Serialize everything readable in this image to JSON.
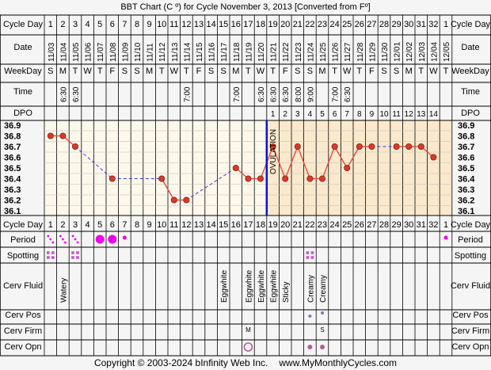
{
  "title": "BBT Chart (C º) for Cycle November 3, 2013  [Converted from Fº]",
  "footer": {
    "copyright": "Copyright © 2003-2024 bInfinity Web Inc.",
    "site": "www.MyMonthlyCycles.com"
  },
  "row_labels": {
    "cycle_day": "Cycle Day",
    "date": "Date",
    "weekday": "WeekDay",
    "time": "Time",
    "dpo": "DPO",
    "period": "Period",
    "spotting": "Spotting",
    "cerv_fluid": "Cerv Fluid",
    "cerv_pos": "Cerv Pos",
    "cerv_firm": "Cerv Firm",
    "cerv_opn": "Cerv Opn"
  },
  "ovulation_label": "OVULATION",
  "colors": {
    "background": "#f5f5f5",
    "pre_ovulation": "#fdf8ea",
    "post_ovulation": "#fbe9cd",
    "line": "#e74c3c",
    "dashed_line": "#3a3ae0",
    "point": "#d93a2b",
    "ovulation_line": "#1010d0",
    "period": "#ee00ee",
    "spotting": "#cc55cc",
    "cerv_dot": "#b06090"
  },
  "chart_data": {
    "type": "line",
    "title": "BBT Chart (C º) for Cycle November 3, 2013  [Converted from Fº]",
    "cycle_days": [
      "1",
      "2",
      "3",
      "4",
      "5",
      "6",
      "7",
      "8",
      "9",
      "10",
      "11",
      "12",
      "13",
      "14",
      "15",
      "16",
      "17",
      "18",
      "19",
      "20",
      "21",
      "22",
      "23",
      "24",
      "25",
      "26",
      "27",
      "28",
      "29",
      "30",
      "31",
      "32",
      "1"
    ],
    "dates": [
      "11/03",
      "11/04",
      "11/05",
      "11/06",
      "11/07",
      "11/08",
      "11/09",
      "11/10",
      "11/11",
      "11/12",
      "11/13",
      "11/14",
      "11/15",
      "11/16",
      "11/17",
      "11/18",
      "11/19",
      "11/20",
      "11/21",
      "11/22",
      "11/23",
      "11/24",
      "11/25",
      "11/26",
      "11/27",
      "11/28",
      "11/29",
      "11/30",
      "12/01",
      "12/02",
      "12/03",
      "12/04",
      "12/05"
    ],
    "weekdays": [
      "S",
      "M",
      "T",
      "W",
      "T",
      "F",
      "S",
      "S",
      "M",
      "T",
      "W",
      "T",
      "F",
      "S",
      "S",
      "M",
      "T",
      "W",
      "T",
      "F",
      "S",
      "S",
      "M",
      "T",
      "W",
      "T",
      "F",
      "S",
      "S",
      "M",
      "T",
      "W",
      "T"
    ],
    "times": [
      "",
      "6:30",
      "6:30",
      "",
      "",
      "",
      "",
      "",
      "",
      "",
      "",
      "7:00",
      "",
      "",
      "",
      "7:00",
      "",
      "6:30",
      "6:30",
      "6:30",
      "8:00",
      "9:00",
      "",
      "7:00",
      "6:30",
      "",
      "",
      "",
      "",
      "",
      "",
      "",
      ""
    ],
    "dpo": [
      "",
      "",
      "",
      "",
      "",
      "",
      "",
      "",
      "",
      "",
      "",
      "",
      "",
      "",
      "",
      "",
      "",
      "",
      "1",
      "2",
      "3",
      "4",
      "5",
      "6",
      "7",
      "8",
      "9",
      "10",
      "11",
      "12",
      "13",
      "14",
      ""
    ],
    "y_ticks": [
      "36.9",
      "36.8",
      "36.7",
      "36.6",
      "36.5",
      "36.4",
      "36.3",
      "36.2",
      "36.1"
    ],
    "ylim": [
      36.05,
      36.95
    ],
    "temps": [
      36.8,
      36.8,
      36.7,
      null,
      null,
      36.4,
      null,
      null,
      null,
      36.4,
      36.2,
      36.2,
      null,
      null,
      null,
      36.5,
      36.4,
      36.4,
      36.7,
      36.4,
      36.7,
      36.4,
      36.4,
      36.7,
      36.5,
      36.7,
      36.7,
      null,
      36.7,
      36.7,
      36.7,
      36.6,
      null
    ],
    "ovulation_day": 18,
    "coverline": null
  },
  "period": [
    2,
    2,
    2,
    0,
    3,
    3,
    1,
    0,
    0,
    0,
    0,
    0,
    0,
    0,
    0,
    0,
    0,
    0,
    0,
    0,
    0,
    0,
    0,
    0,
    0,
    0,
    0,
    0,
    0,
    0,
    0,
    0,
    1
  ],
  "spotting": [
    true,
    false,
    true,
    false,
    false,
    false,
    false,
    false,
    false,
    false,
    false,
    false,
    false,
    false,
    false,
    false,
    false,
    false,
    false,
    false,
    false,
    true,
    false,
    false,
    false,
    false,
    false,
    false,
    false,
    false,
    false,
    false,
    false
  ],
  "cerv_fluid": [
    "",
    "Watery",
    "",
    "",
    "",
    "",
    "",
    "",
    "",
    "",
    "",
    "",
    "",
    "",
    "Eggwhite",
    "",
    "Eggwhite",
    "Eggwhite",
    "Eggwhite",
    "Sticky",
    "",
    "Creamy",
    "Creamy",
    "",
    "",
    "",
    "",
    "",
    "",
    "",
    "",
    "",
    ""
  ],
  "cerv_pos": {
    "22": "low",
    "23": "high"
  },
  "cerv_firm": {
    "17": "M",
    "23": "S"
  },
  "cerv_opn": {
    "17": "open",
    "22": "closed",
    "23": "closed"
  }
}
